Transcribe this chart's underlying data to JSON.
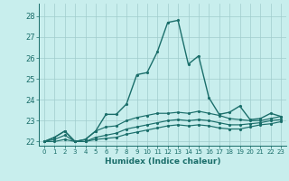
{
  "xlabel": "Humidex (Indice chaleur)",
  "background_color": "#c8eeed",
  "grid_color": "#a0cccc",
  "line_color": "#1a6e6a",
  "xlim": [
    -0.5,
    23.5
  ],
  "ylim": [
    21.8,
    28.6
  ],
  "yticks": [
    22,
    23,
    24,
    25,
    26,
    27,
    28
  ],
  "xticks": [
    0,
    1,
    2,
    3,
    4,
    5,
    6,
    7,
    8,
    9,
    10,
    11,
    12,
    13,
    14,
    15,
    16,
    17,
    18,
    19,
    20,
    21,
    22,
    23
  ],
  "xlabels": [
    "0",
    "1",
    "2",
    "3",
    "4",
    "5",
    "6",
    "7",
    "8",
    "9",
    "10",
    "11",
    "12",
    "13",
    "14",
    "15",
    "16",
    "17",
    "18",
    "19",
    "20",
    "21",
    "22",
    "23"
  ],
  "series": [
    [
      22.0,
      22.2,
      22.5,
      22.0,
      22.1,
      22.5,
      23.3,
      23.3,
      23.8,
      25.2,
      25.3,
      26.3,
      27.7,
      27.8,
      25.7,
      26.1,
      24.1,
      23.3,
      23.4,
      23.7,
      23.05,
      23.1,
      23.35,
      23.2
    ],
    [
      22.0,
      22.2,
      22.5,
      22.0,
      22.1,
      22.5,
      22.7,
      22.75,
      23.0,
      23.15,
      23.25,
      23.35,
      23.35,
      23.4,
      23.35,
      23.45,
      23.35,
      23.25,
      23.1,
      23.05,
      23.0,
      23.0,
      23.1,
      23.2
    ],
    [
      22.0,
      22.1,
      22.3,
      22.0,
      22.0,
      22.2,
      22.3,
      22.4,
      22.6,
      22.7,
      22.8,
      22.9,
      23.0,
      23.05,
      23.0,
      23.05,
      23.0,
      22.9,
      22.8,
      22.8,
      22.85,
      22.9,
      23.0,
      23.05
    ],
    [
      22.0,
      22.0,
      22.1,
      22.0,
      22.0,
      22.1,
      22.15,
      22.2,
      22.35,
      22.45,
      22.55,
      22.65,
      22.75,
      22.8,
      22.75,
      22.8,
      22.75,
      22.65,
      22.6,
      22.6,
      22.7,
      22.8,
      22.85,
      22.95
    ]
  ]
}
